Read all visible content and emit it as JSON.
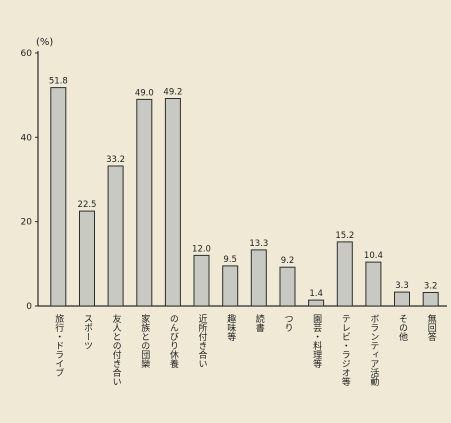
{
  "chart_data": {
    "type": "bar",
    "ylabel": "(%)",
    "ylim": [
      0,
      60
    ],
    "yticks": [
      0,
      20,
      40,
      60
    ],
    "grid": false,
    "categories": [
      "旅行・ドライブ",
      "スポーツ",
      "友人との付き合い",
      "家族との団欒",
      "のんびり休養",
      "近所付き合い",
      "趣味等",
      "読書",
      "つり",
      "園芸・料理等",
      "テレビ・ラジオ等",
      "ボランティア活動",
      "その他",
      "無回答"
    ],
    "values": [
      51.8,
      22.5,
      33.2,
      49.0,
      49.2,
      12.0,
      9.5,
      13.3,
      9.2,
      1.4,
      15.2,
      10.4,
      3.3,
      3.2
    ],
    "value_labels": [
      "51.8",
      "22.5",
      "33.2",
      "49.0",
      "49.2",
      "12.0",
      "9.5",
      "13.3",
      "9.2",
      "1.4",
      "15.2",
      "10.4",
      "3.3",
      "3.2"
    ]
  }
}
